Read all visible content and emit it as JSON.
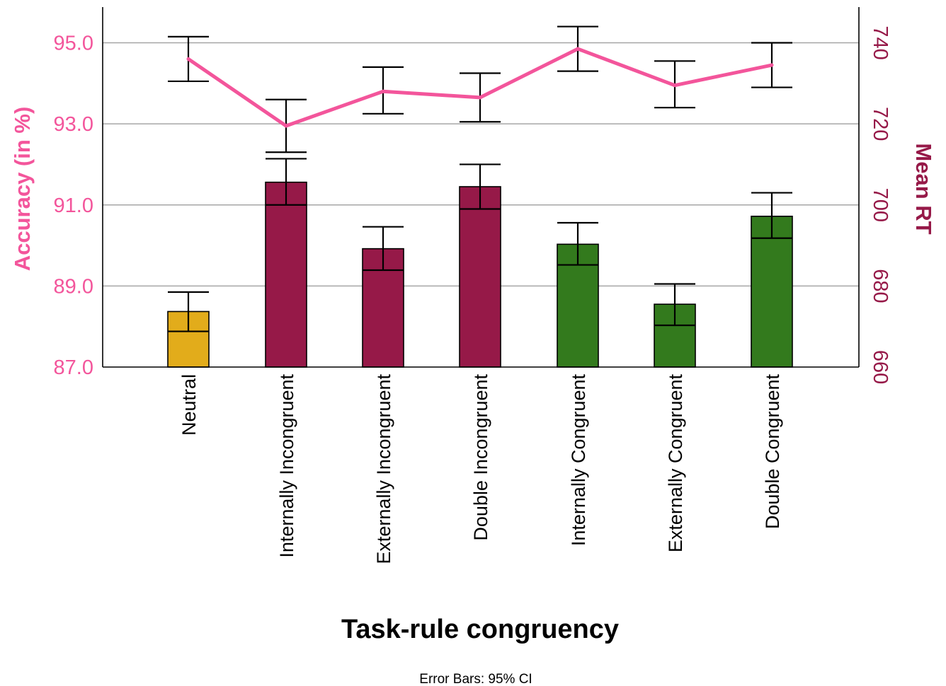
{
  "chart_data": {
    "type": "bar",
    "xlabel": "Task-rule congruency",
    "ylabel_left": "Accuracy (in %)",
    "ylabel_right": "Mean RT",
    "footnote": "Error Bars: 95% CI",
    "categories": [
      "Neutral",
      "Internally Incongruent",
      "Externally Incongruent",
      "Double Incongruent",
      "Internally Congruent",
      "Externally Congruent",
      "Double Congruent"
    ],
    "y_left": {
      "lim": [
        87.0,
        95.8
      ],
      "ticks": [
        "87.0",
        "89.0",
        "91.0",
        "93.0",
        "95.0"
      ],
      "tick_values": [
        87,
        89,
        91,
        93,
        95
      ]
    },
    "y_right": {
      "lim": [
        660,
        744
      ],
      "ticks": [
        "660",
        "680",
        "700",
        "720",
        "740"
      ],
      "tick_values": [
        660,
        680,
        700,
        720,
        740
      ]
    },
    "grid": "horizontal",
    "bars": {
      "axis": "right",
      "values": [
        673.7,
        705.6,
        689.2,
        704.5,
        690.3,
        675.5,
        697.2
      ],
      "ci_low": [
        668.8,
        700.0,
        683.9,
        699.0,
        685.2,
        670.3,
        691.8
      ],
      "ci_high": [
        678.5,
        711.4,
        694.6,
        710.0,
        695.6,
        680.5,
        703.0
      ],
      "colors": [
        "#e2ac1b",
        "#961948",
        "#961948",
        "#961948",
        "#337a1d",
        "#337a1d",
        "#337a1d"
      ]
    },
    "line": {
      "axis": "left",
      "values": [
        94.6,
        92.95,
        93.8,
        93.65,
        94.85,
        93.95,
        94.45
      ],
      "ci_low": [
        94.05,
        92.3,
        93.25,
        93.05,
        94.3,
        93.4,
        93.9
      ],
      "ci_high": [
        95.15,
        93.6,
        94.4,
        94.25,
        95.4,
        94.55,
        95.0
      ],
      "color": "#f3559b"
    },
    "colors": {
      "left_axis": "#f3559b",
      "right_axis": "#961948",
      "gridline": "#a6a6a6"
    }
  }
}
